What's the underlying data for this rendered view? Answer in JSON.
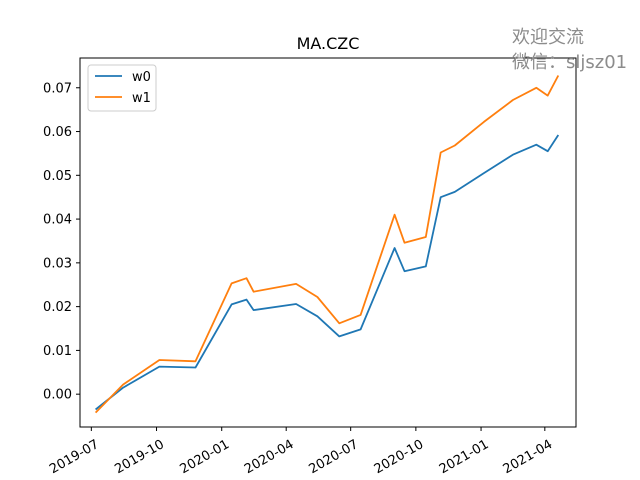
{
  "chart_data": {
    "type": "line",
    "title": "MA.CZC",
    "xlabel": "",
    "ylabel": "",
    "x": [
      "2019-07-07",
      "2019-08-15",
      "2019-10-05",
      "2019-11-25",
      "2020-01-15",
      "2020-02-05",
      "2020-02-15",
      "2020-04-15",
      "2020-05-15",
      "2020-06-15",
      "2020-07-15",
      "2020-09-01",
      "2020-09-15",
      "2020-10-15",
      "2020-11-05",
      "2020-11-25",
      "2021-01-05",
      "2021-02-15",
      "2021-03-20",
      "2021-04-05",
      "2021-04-20"
    ],
    "series": [
      {
        "name": "w0",
        "color": "#1f77b4",
        "values": [
          -0.0035,
          0.0015,
          0.0063,
          0.0061,
          0.0205,
          0.0216,
          0.0192,
          0.0206,
          0.0178,
          0.0132,
          0.0148,
          0.0334,
          0.0281,
          0.0292,
          0.045,
          0.0462,
          0.0505,
          0.0547,
          0.057,
          0.0555,
          0.0592
        ]
      },
      {
        "name": "w1",
        "color": "#ff7f0e",
        "values": [
          -0.0042,
          0.0022,
          0.0078,
          0.0075,
          0.0253,
          0.0265,
          0.0234,
          0.0252,
          0.0222,
          0.0162,
          0.0181,
          0.041,
          0.0346,
          0.0359,
          0.0552,
          0.0568,
          0.0622,
          0.0672,
          0.07,
          0.0682,
          0.0728
        ]
      }
    ],
    "ylim": [
      -0.0075,
      0.0768
    ],
    "xlim": [
      "2019-06-15",
      "2021-05-15"
    ],
    "y_ticks": [
      0.0,
      0.01,
      0.02,
      0.03,
      0.04,
      0.05,
      0.06,
      0.07
    ],
    "y_tick_labels": [
      "0.00",
      "0.01",
      "0.02",
      "0.03",
      "0.04",
      "0.05",
      "0.06",
      "0.07"
    ],
    "x_ticks": [
      "2019-07-01",
      "2019-10-01",
      "2020-01-01",
      "2020-04-01",
      "2020-07-01",
      "2020-10-01",
      "2021-01-01",
      "2021-04-01"
    ],
    "x_tick_labels": [
      "2019-07",
      "2019-10",
      "2020-01",
      "2020-04",
      "2020-07",
      "2020-10",
      "2021-01",
      "2021-04"
    ],
    "legend": "upper-left",
    "grid": false
  },
  "watermark": {
    "line1": "欢迎交流",
    "line2": "微信：sljsz01"
  }
}
